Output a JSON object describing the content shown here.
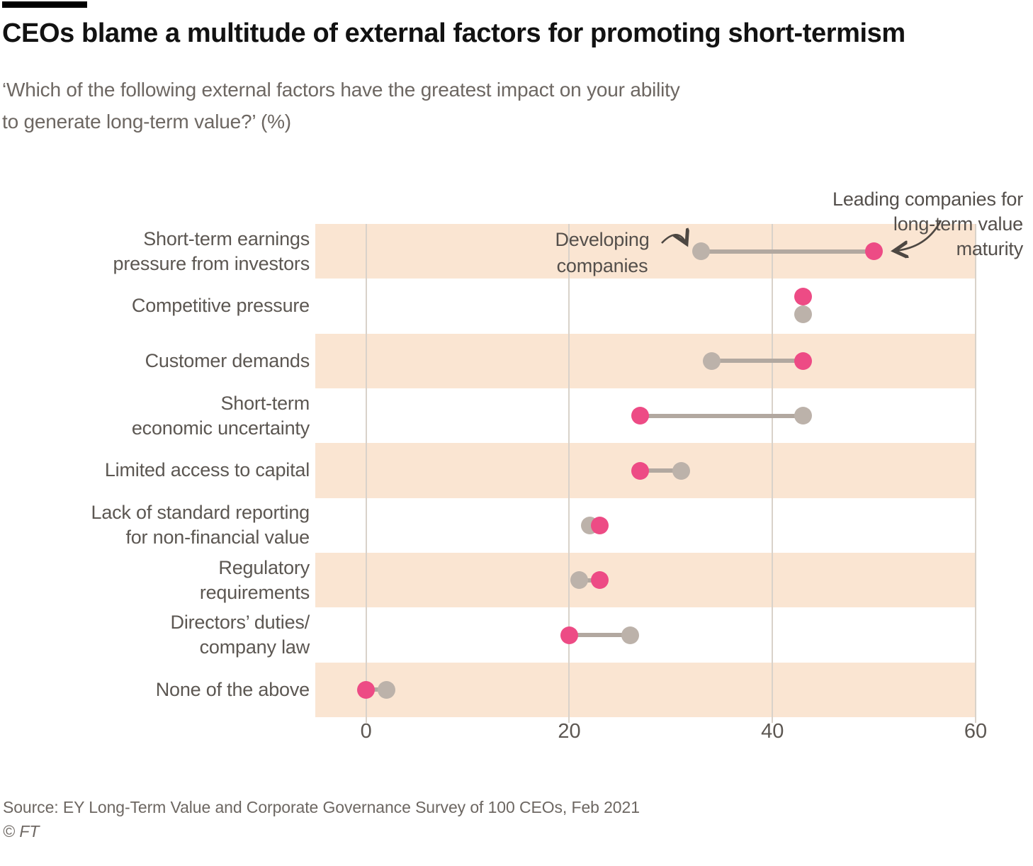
{
  "header": {
    "title": "CEOs blame a multitude of external factors for promoting short-termism",
    "subtitle_lines": [
      "‘Which of the following external factors have the greatest impact on your ability",
      "to generate long-term value?’ (%)"
    ]
  },
  "chart_data": {
    "type": "dumbbell",
    "title": "CEOs blame a multitude of external factors for promoting short-termism",
    "unit": "%",
    "categories": [
      [
        "Short-term earnings",
        "pressure from investors"
      ],
      [
        "Competitive pressure"
      ],
      [
        "Customer demands"
      ],
      [
        "Short-term",
        "economic uncertainty"
      ],
      [
        "Limited access to capital"
      ],
      [
        "Lack of standard reporting",
        "for non-financial value"
      ],
      [
        "Regulatory",
        "requirements"
      ],
      [
        "Directors’ duties/",
        "company law"
      ],
      [
        "None of the above"
      ]
    ],
    "series": [
      {
        "name": "Developing companies",
        "color": "#bcb2aa",
        "values": [
          33,
          43,
          34,
          43,
          31,
          22,
          21,
          26,
          2
        ]
      },
      {
        "name": "Leading companies for long-term value maturity",
        "color": "#ed4b85",
        "values": [
          50,
          43,
          43,
          27,
          27,
          23,
          23,
          20,
          0
        ]
      }
    ],
    "xticks": [
      0,
      20,
      40,
      60
    ],
    "xlim": [
      -5,
      60
    ],
    "grid": "vertical",
    "legend_position": "annotations-on-first-row",
    "band_color": "#fae5d2",
    "connector_color": "#b2a8a0",
    "gridline_color": "#d9d2ca"
  },
  "annotations": {
    "developing": {
      "lines": [
        "Developing",
        "companies"
      ]
    },
    "leading": {
      "lines": [
        "Leading companies for",
        "long-term value",
        "maturity"
      ]
    }
  },
  "footer": {
    "source": "Source: EY Long-Term Value and Corporate Governance Survey of 100 CEOs, Feb 2021",
    "copyright": "© FT"
  }
}
